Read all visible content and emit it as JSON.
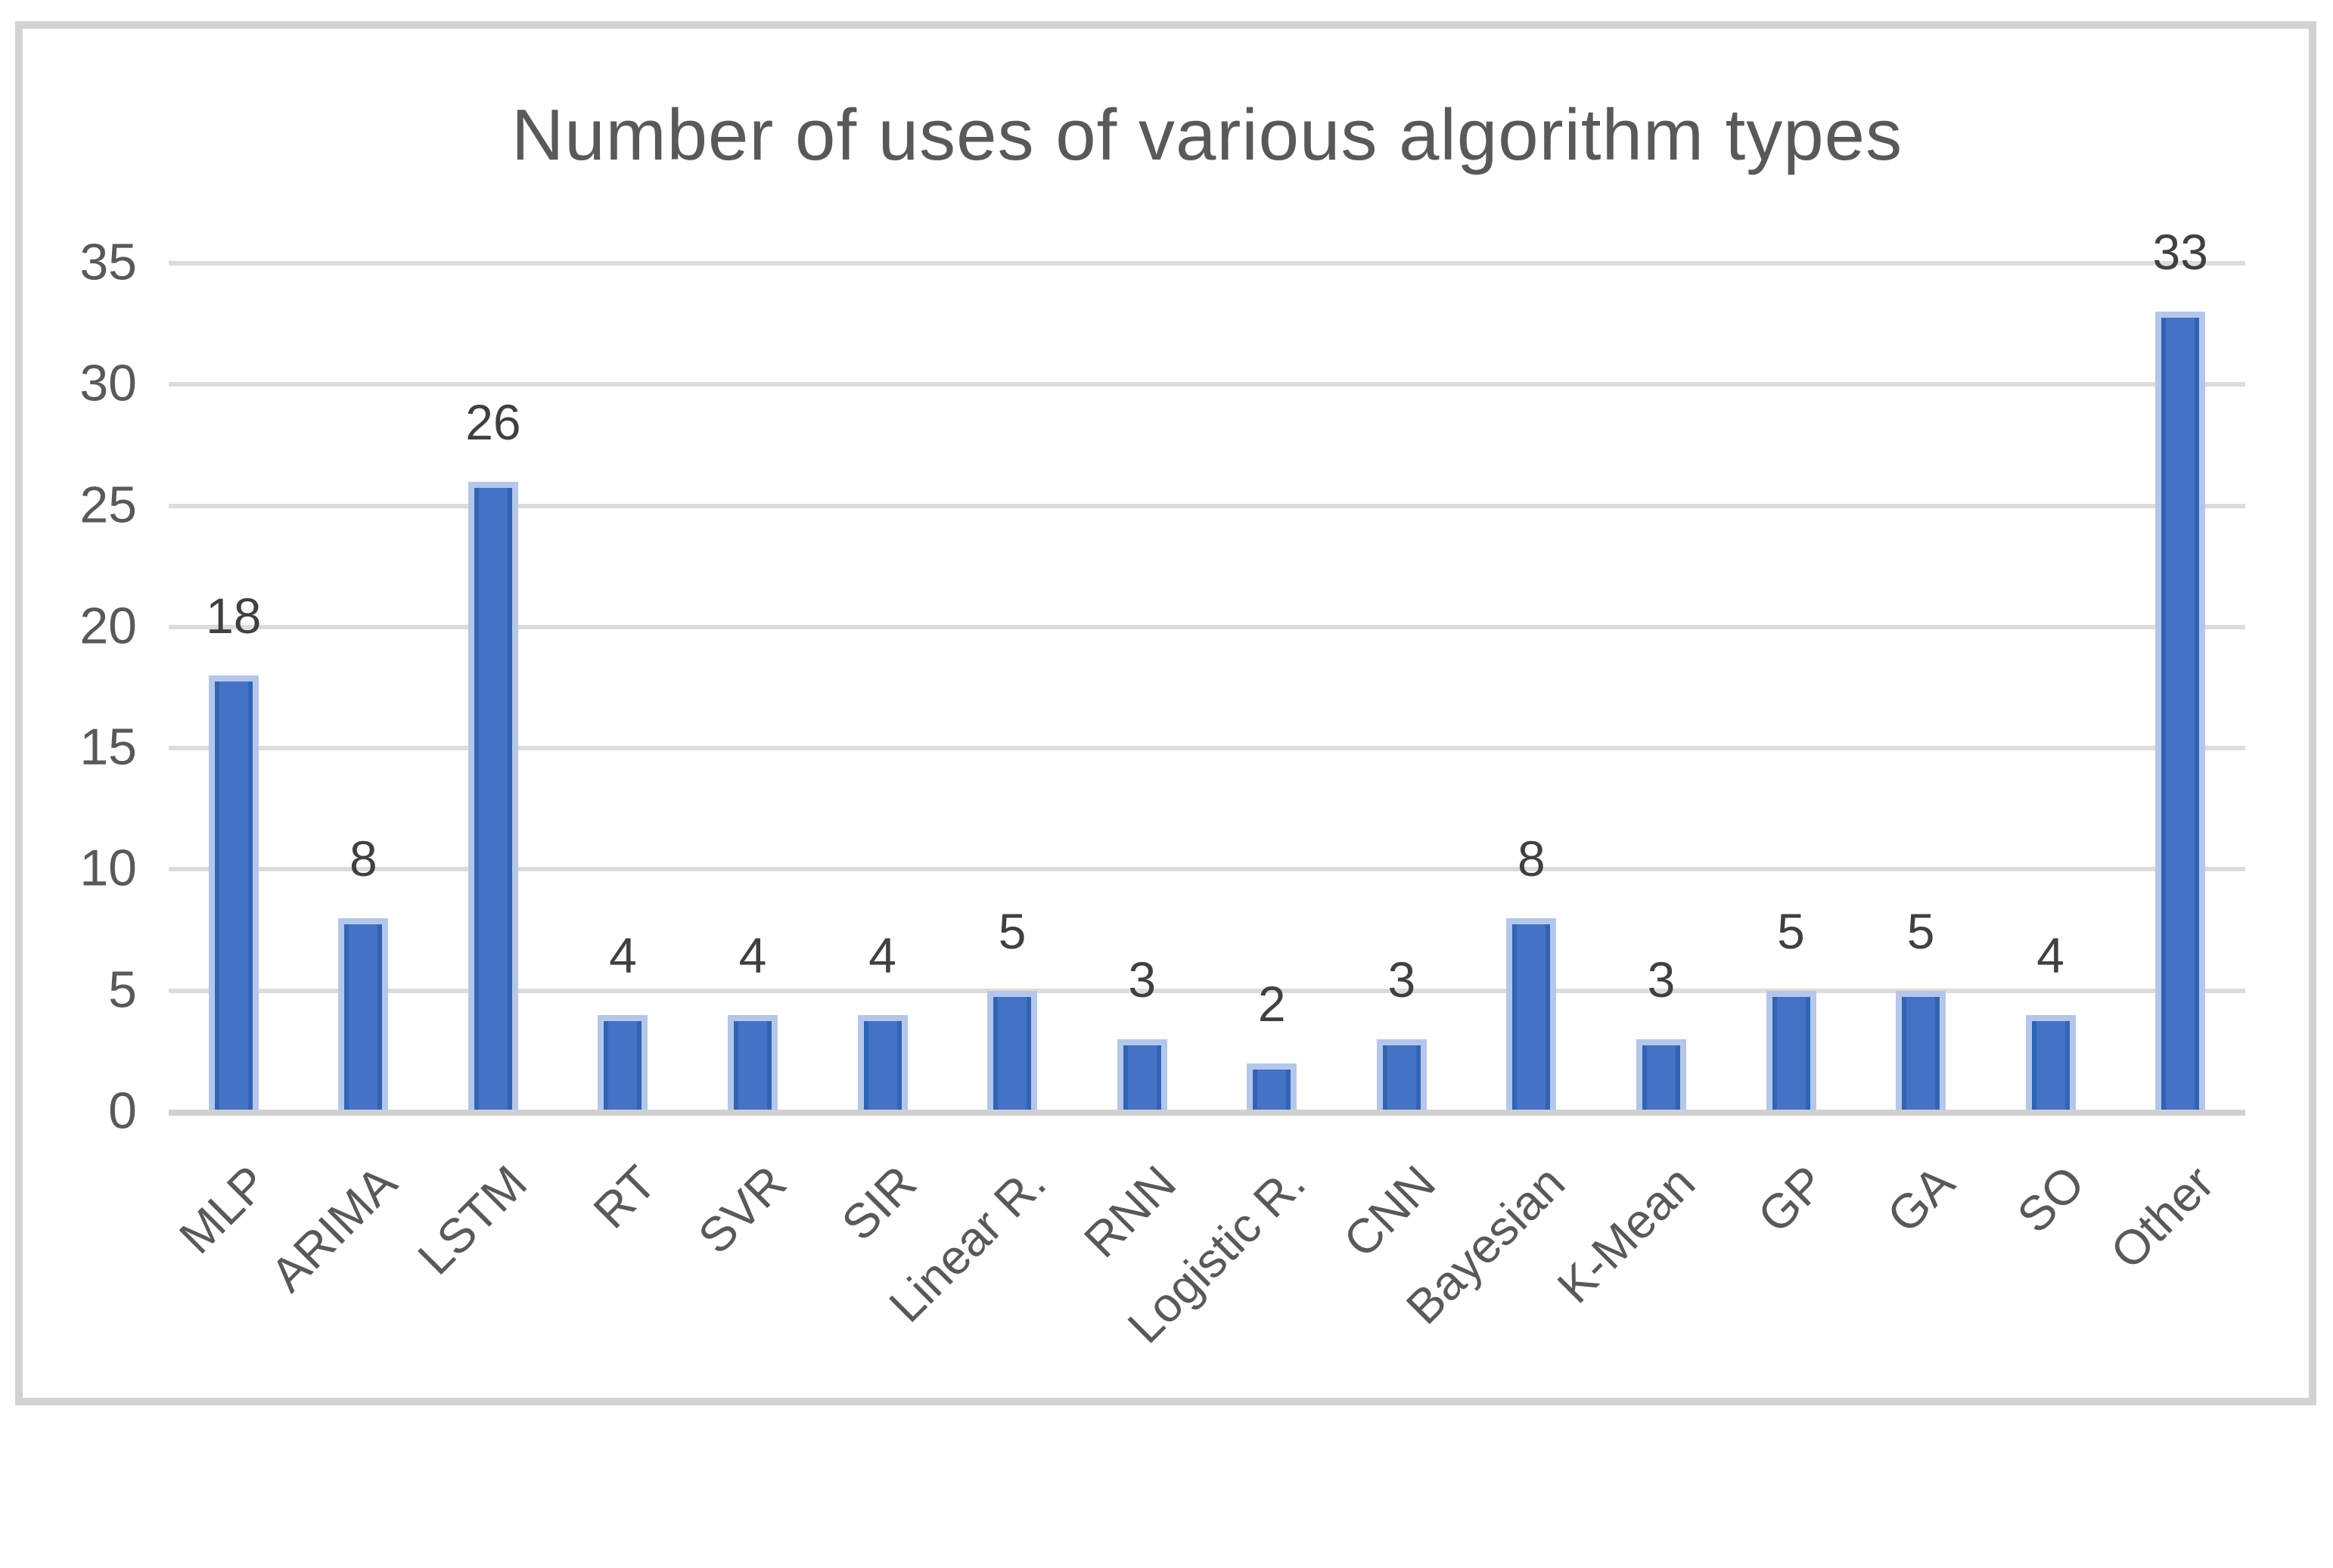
{
  "chart_data": {
    "type": "bar",
    "title": "Number of uses of various algorithm types",
    "categories": [
      "MLP",
      "ARIMA",
      "LSTM",
      "RT",
      "SVR",
      "SIR",
      "Linear R.",
      "RNN",
      "Logistic R.",
      "CNN",
      "Bayesian",
      "K-Mean",
      "GP",
      "GA",
      "SO",
      "Other"
    ],
    "values": [
      18,
      8,
      26,
      4,
      4,
      4,
      5,
      3,
      2,
      3,
      8,
      3,
      5,
      5,
      4,
      33
    ],
    "xlabel": "",
    "ylabel": "",
    "ylim": [
      0,
      35
    ],
    "yticks": [
      0,
      5,
      10,
      15,
      20,
      25,
      30,
      35
    ],
    "grid": true,
    "legend": false,
    "data_labels_shown": true,
    "x_label_rotation_deg": -45,
    "colors": {
      "bar_fill": "#4472c4",
      "bar_edge": "#b4c7ea",
      "bar_inner_edge": "#3264b4",
      "gridline": "#dcdcdc",
      "axis_line": "#d0d0d0",
      "title_text": "#595959",
      "tick_text": "#595959",
      "data_label_text": "#404040",
      "frame_border": "#d2d2d2",
      "background": "#ffffff"
    }
  }
}
